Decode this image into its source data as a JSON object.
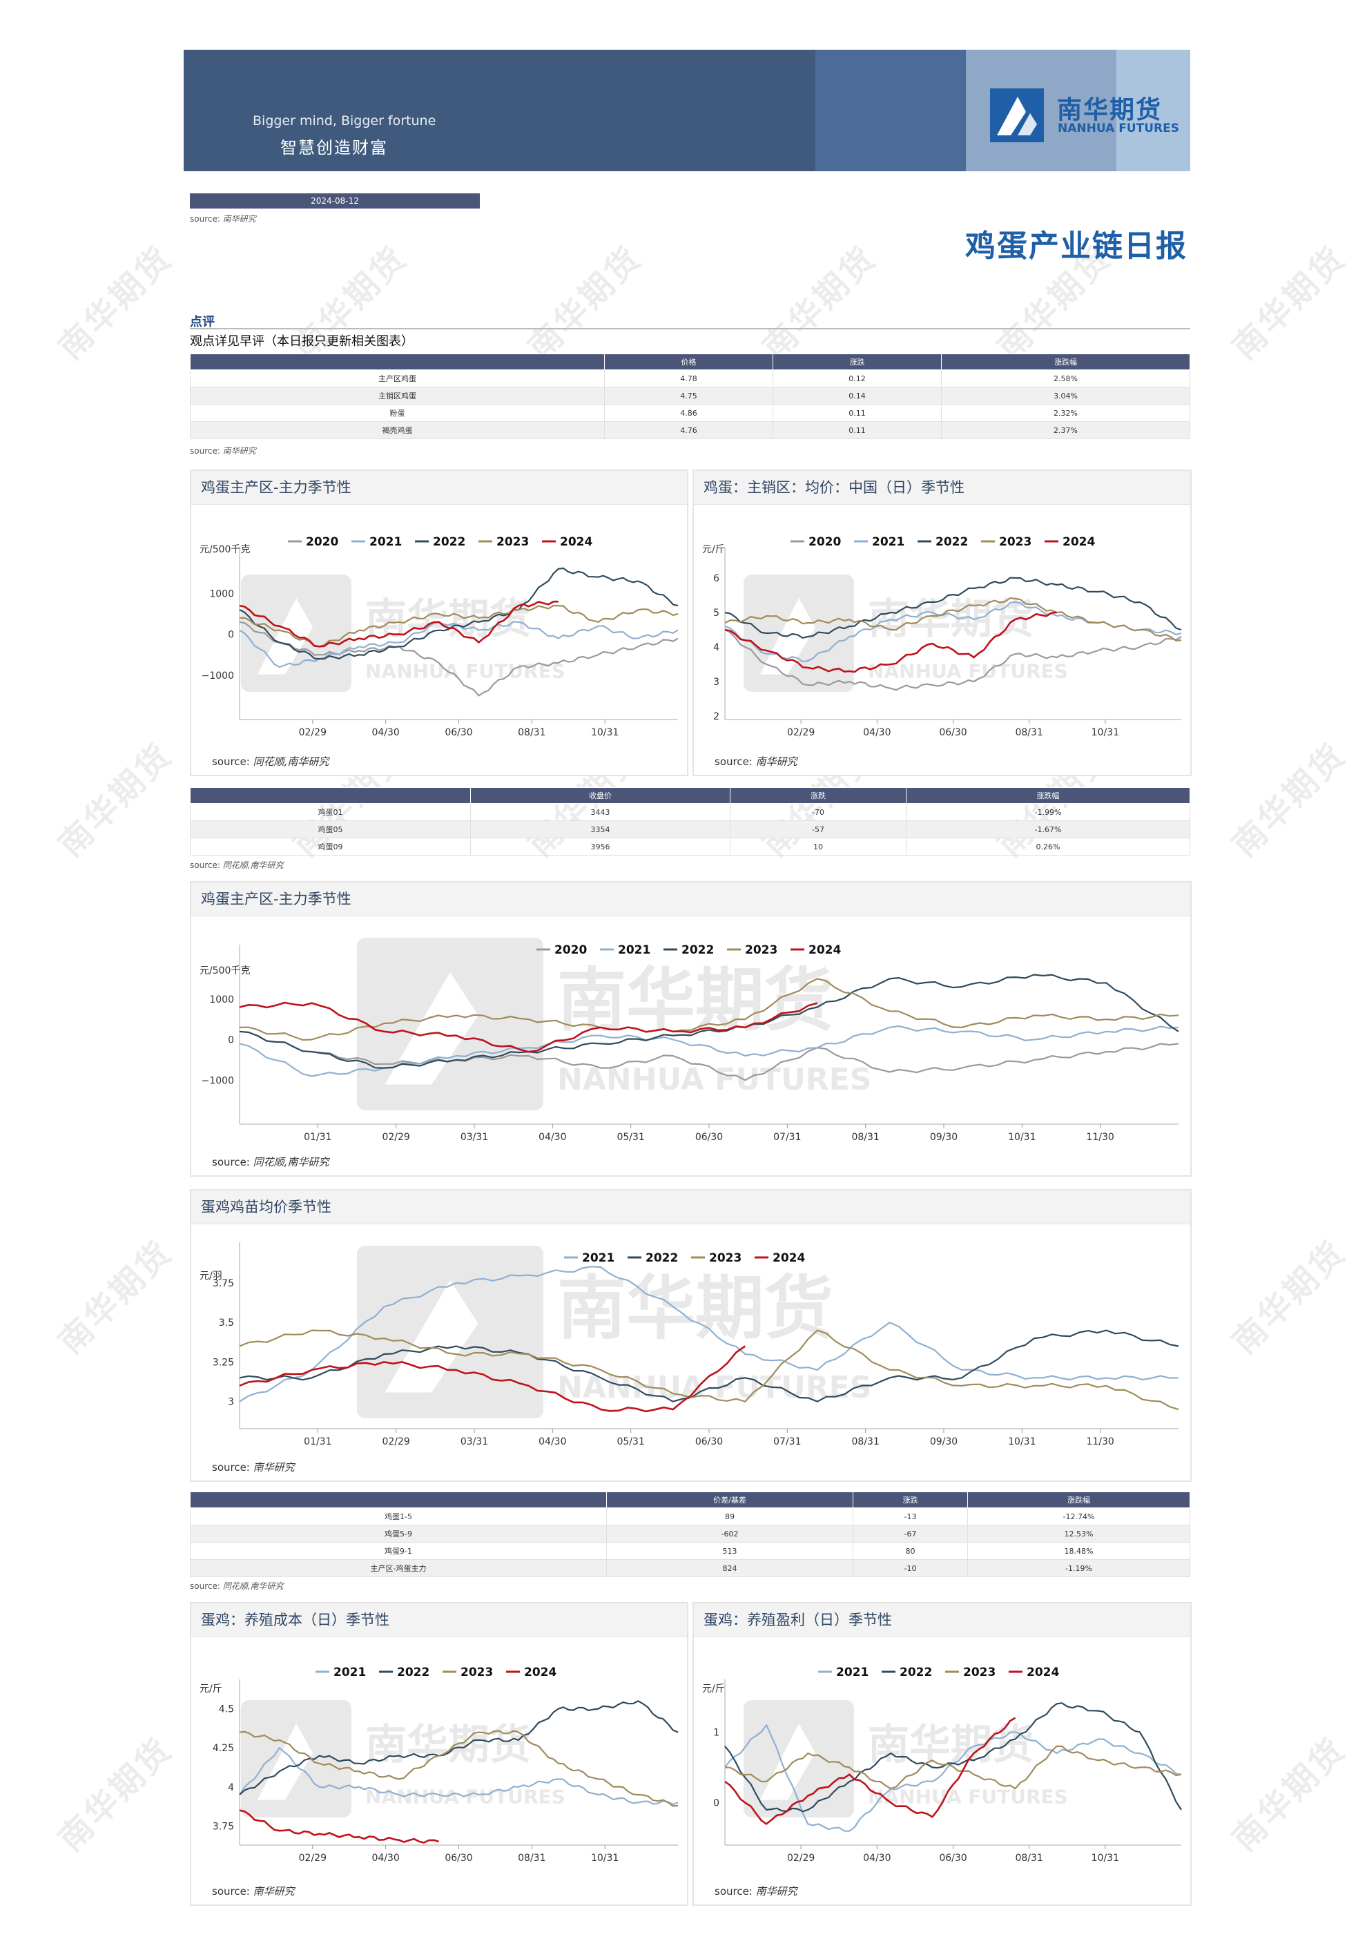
{
  "banner": {
    "tagline_en": "Bigger mind, Bigger fortune",
    "tagline_zh": "智慧创造财富",
    "logo_name": "南华期货",
    "logo_name_en": "NANHUA FUTURES"
  },
  "date": "2024-08-12",
  "source_label": "source:",
  "source_nanhua": "南华研究",
  "source_thx": "同花顺,南华研究",
  "report_title": "鸡蛋产业链日报",
  "section_label": "点评",
  "comment": "观点详见早评（本日报只更新相关图表）",
  "watermark": "南华期货",
  "table_spot": {
    "headers": [
      "",
      "价格",
      "涨跌",
      "涨跌幅"
    ],
    "rows": [
      [
        "主产区鸡蛋",
        "4.78",
        "0.12",
        "2.58%"
      ],
      [
        "主销区鸡蛋",
        "4.75",
        "0.14",
        "3.04%"
      ],
      [
        "粉蛋",
        "4.86",
        "0.11",
        "2.32%"
      ],
      [
        "褐壳鸡蛋",
        "4.76",
        "0.11",
        "2.37%"
      ]
    ]
  },
  "table_futures": {
    "headers": [
      "",
      "收盘价",
      "涨跌",
      "涨跌幅"
    ],
    "rows": [
      [
        "鸡蛋01",
        "3443",
        "-70",
        "-1.99%"
      ],
      [
        "鸡蛋05",
        "3354",
        "-57",
        "-1.67%"
      ],
      [
        "鸡蛋09",
        "3956",
        "10",
        "0.26%"
      ]
    ]
  },
  "table_spread": {
    "headers": [
      "",
      "价差/基差",
      "涨跌",
      "涨跌幅"
    ],
    "rows": [
      [
        "鸡蛋1-5",
        "89",
        "-13",
        "-12.74%"
      ],
      [
        "鸡蛋5-9",
        "-602",
        "-67",
        "12.53%"
      ],
      [
        "鸡蛋9-1",
        "513",
        "80",
        "18.48%"
      ],
      [
        "主产区-鸡蛋主力",
        "824",
        "-10",
        "-1.19%"
      ]
    ]
  },
  "colors": {
    "2020": "#9a9a9a",
    "2021": "#8fb0d2",
    "2022": "#2f4b5e",
    "2023": "#a08b5a",
    "2024": "#c0121c"
  },
  "chart_data": [
    {
      "title": "鸡蛋主产区-主力季节性",
      "type": "line",
      "ylabel": "元/500千克",
      "yticks": [
        "1000",
        "0",
        "−1000"
      ],
      "xticks": [
        "02/29",
        "04/30",
        "06/30",
        "08/31",
        "10/31"
      ],
      "ylim": [
        -2000,
        1800
      ],
      "series": [
        {
          "name": "2020",
          "values": [
            300,
            -200,
            -500,
            -400,
            -300,
            -700,
            -1500,
            -800,
            -700,
            -500,
            -300,
            -100
          ]
        },
        {
          "name": "2021",
          "values": [
            100,
            -800,
            -600,
            -300,
            -200,
            300,
            100,
            300,
            -100,
            200,
            -100,
            100
          ]
        },
        {
          "name": "2022",
          "values": [
            600,
            -200,
            -600,
            -500,
            -300,
            100,
            300,
            600,
            1600,
            1400,
            1300,
            700
          ]
        },
        {
          "name": "2023",
          "values": [
            400,
            100,
            -300,
            100,
            300,
            500,
            400,
            600,
            700,
            300,
            600,
            500
          ]
        },
        {
          "name": "2024",
          "values": [
            700,
            200,
            -300,
            -100,
            0,
            300,
            -200,
            700,
            800
          ]
        }
      ],
      "source": "同花顺,南华研究"
    },
    {
      "title": "鸡蛋：主销区：均价：中国（日）季节性",
      "type": "line",
      "ylabel": "元/斤",
      "yticks": [
        "6",
        "5",
        "4",
        "3",
        "2"
      ],
      "xticks": [
        "02/29",
        "04/30",
        "06/30",
        "08/31",
        "10/31"
      ],
      "ylim": [
        2,
        6.5
      ],
      "series": [
        {
          "name": "2020",
          "values": [
            4.5,
            3.5,
            2.9,
            3.0,
            2.8,
            2.9,
            3.0,
            3.8,
            3.7,
            3.9,
            4.0,
            4.3
          ]
        },
        {
          "name": "2021",
          "values": [
            4.6,
            3.8,
            3.6,
            4.3,
            4.8,
            5.0,
            4.8,
            5.3,
            4.9,
            4.7,
            4.5,
            4.4
          ]
        },
        {
          "name": "2022",
          "values": [
            5.0,
            4.4,
            4.3,
            4.6,
            5.0,
            5.3,
            5.7,
            6.0,
            5.8,
            5.6,
            5.3,
            4.5
          ]
        },
        {
          "name": "2023",
          "values": [
            4.7,
            4.9,
            4.7,
            4.8,
            4.5,
            4.9,
            5.2,
            5.4,
            5.0,
            4.7,
            4.5,
            4.2
          ]
        },
        {
          "name": "2024",
          "values": [
            4.5,
            3.9,
            3.4,
            3.3,
            3.5,
            4.1,
            3.7,
            4.8,
            5.0
          ]
        }
      ],
      "source": "南华研究"
    },
    {
      "title": "鸡蛋主产区-主力季节性",
      "type": "line",
      "ylabel": "元/500千克",
      "yticks": [
        "1000",
        "0",
        "−1000"
      ],
      "xticks": [
        "01/31",
        "02/29",
        "03/31",
        "04/30",
        "05/31",
        "06/30",
        "07/31",
        "08/31",
        "09/30",
        "10/31",
        "11/30"
      ],
      "ylim": [
        -2000,
        2000
      ],
      "series": [
        {
          "name": "2020",
          "values": [
            200,
            -300,
            -600,
            -500,
            -400,
            -700,
            -400,
            -1000,
            -200,
            -800,
            -700,
            -500,
            -300,
            -100
          ]
        },
        {
          "name": "2021",
          "values": [
            -100,
            -900,
            -700,
            -400,
            -200,
            100,
            0,
            -400,
            -200,
            300,
            200,
            0,
            200,
            300
          ]
        },
        {
          "name": "2022",
          "values": [
            200,
            -300,
            -700,
            -500,
            -300,
            -100,
            100,
            300,
            800,
            1500,
            1300,
            1600,
            1400,
            200
          ]
        },
        {
          "name": "2023",
          "values": [
            300,
            0,
            400,
            600,
            500,
            300,
            200,
            500,
            1500,
            700,
            300,
            600,
            500,
            600
          ]
        },
        {
          "name": "2024",
          "values": [
            800,
            900,
            200,
            100,
            -300,
            300,
            200,
            300,
            900
          ]
        }
      ],
      "source": "同花顺,南华研究"
    },
    {
      "title": "蛋鸡鸡苗均价季节性",
      "type": "line",
      "ylabel": "元/羽",
      "yticks": [
        "3.75",
        "3.5",
        "3.25",
        "3"
      ],
      "xticks": [
        "01/31",
        "02/29",
        "03/31",
        "04/30",
        "05/31",
        "06/30",
        "07/31",
        "08/31",
        "09/30",
        "10/31",
        "11/30"
      ],
      "ylim": [
        2.85,
        3.92
      ],
      "series": [
        {
          "name": "2021",
          "values": [
            3.0,
            3.2,
            3.6,
            3.75,
            3.8,
            3.85,
            3.6,
            3.3,
            3.2,
            3.5,
            3.2,
            3.15,
            3.15,
            3.15
          ]
        },
        {
          "name": "2022",
          "values": [
            3.15,
            3.15,
            3.3,
            3.35,
            3.3,
            3.15,
            3.0,
            3.15,
            3.0,
            3.15,
            3.15,
            3.4,
            3.45,
            3.35
          ]
        },
        {
          "name": "2023",
          "values": [
            3.35,
            3.45,
            3.4,
            3.3,
            3.3,
            3.2,
            3.05,
            3.0,
            3.45,
            3.2,
            3.1,
            3.1,
            3.1,
            2.95
          ]
        },
        {
          "name": "2024",
          "values": [
            3.1,
            3.2,
            3.25,
            3.2,
            3.1,
            2.95,
            2.95,
            3.35
          ]
        }
      ],
      "source": "南华研究"
    },
    {
      "title": "蛋鸡：养殖成本（日）季节性",
      "type": "line",
      "ylabel": "元/斤",
      "yticks": [
        "4.5",
        "4.25",
        "4",
        "3.75"
      ],
      "xticks": [
        "02/29",
        "04/30",
        "06/30",
        "08/31",
        "10/31"
      ],
      "ylim": [
        3.65,
        4.6
      ],
      "series": [
        {
          "name": "2021",
          "values": [
            3.95,
            4.25,
            4.0,
            4.0,
            3.95,
            3.95,
            3.95,
            4.0,
            4.05,
            3.95,
            3.9,
            3.9
          ]
        },
        {
          "name": "2022",
          "values": [
            3.95,
            4.1,
            4.2,
            4.15,
            4.2,
            4.2,
            4.3,
            4.3,
            4.5,
            4.5,
            4.55,
            4.35
          ]
        },
        {
          "name": "2023",
          "values": [
            4.35,
            4.3,
            4.15,
            4.1,
            4.05,
            4.2,
            4.35,
            4.35,
            4.15,
            4.05,
            3.95,
            3.88
          ]
        },
        {
          "name": "2024",
          "values": [
            3.85,
            3.72,
            3.7,
            3.68,
            3.66,
            3.65
          ]
        }
      ],
      "source": "南华研究"
    },
    {
      "title": "蛋鸡：养殖盈利（日）季节性",
      "type": "line",
      "ylabel": "元/斤",
      "yticks": [
        "1",
        "0"
      ],
      "xticks": [
        "02/29",
        "04/30",
        "06/30",
        "08/31",
        "10/31"
      ],
      "ylim": [
        -0.55,
        1.55
      ],
      "series": [
        {
          "name": "2021",
          "values": [
            0.5,
            1.1,
            -0.3,
            -0.4,
            0.2,
            0.3,
            0.8,
            1.0,
            0.7,
            0.9,
            0.7,
            0.4
          ]
        },
        {
          "name": "2022",
          "values": [
            0.8,
            -0.1,
            -0.1,
            0.3,
            0.7,
            0.5,
            0.6,
            0.9,
            1.4,
            1.3,
            1.0,
            -0.1
          ]
        },
        {
          "name": "2023",
          "values": [
            0.5,
            0.3,
            0.7,
            0.5,
            0.2,
            0.6,
            0.4,
            0.2,
            0.8,
            0.6,
            0.5,
            0.4
          ]
        },
        {
          "name": "2024",
          "values": [
            0.3,
            -0.3,
            0.1,
            0.4,
            0.0,
            -0.2,
            0.7,
            1.2
          ]
        }
      ],
      "source": "南华研究"
    }
  ]
}
